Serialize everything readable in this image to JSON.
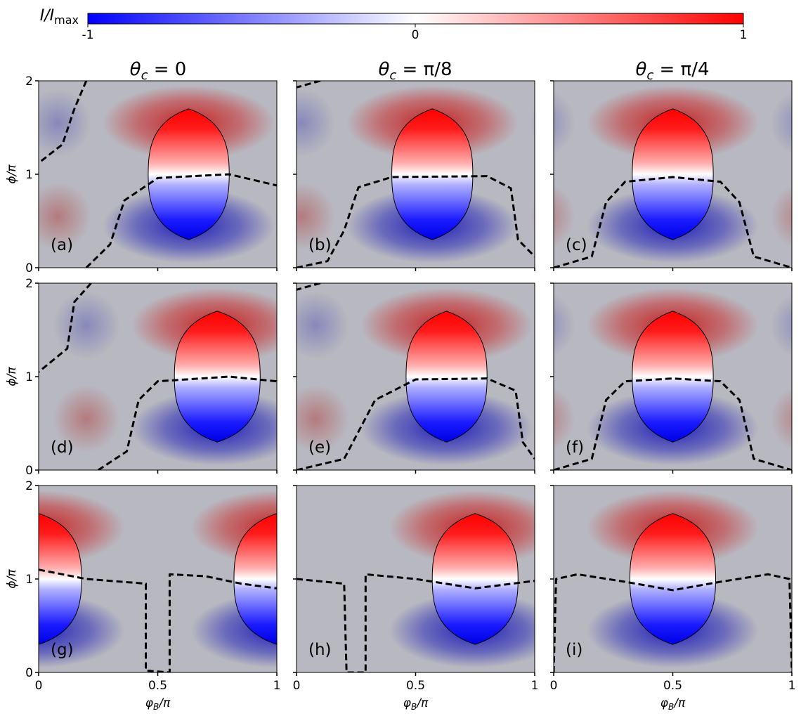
{
  "colorbar": {
    "label": "I/I",
    "label_sub": "max",
    "ticks": [
      "-1",
      "0",
      "1"
    ],
    "colors": {
      "min": "#0000ff",
      "mid": "#ffffff",
      "max": "#ff0000"
    }
  },
  "columns": [
    {
      "theta": "θ",
      "sub": "c",
      "rest": " = 0"
    },
    {
      "theta": "θ",
      "sub": "c",
      "rest": " = π/8"
    },
    {
      "theta": "θ",
      "sub": "c",
      "rest": " = π/4"
    }
  ],
  "y_ticks": [
    "0",
    "1",
    "2"
  ],
  "x_ticks": [
    "0",
    "0.5",
    "1"
  ],
  "ylabel": {
    "main": "ϕ/π"
  },
  "xlabel": {
    "main": "φ",
    "sub": "B",
    "rest": "/π"
  },
  "panel_labels": [
    "(a)",
    "(b)",
    "(c)",
    "(d)",
    "(e)",
    "(f)",
    "(g)",
    "(h)",
    "(i)"
  ],
  "chart_data": {
    "type": "heatmap",
    "title": "",
    "xlabel": "φB/π",
    "ylabel": "ϕ/π",
    "xlim": [
      0,
      1
    ],
    "ylim": [
      0,
      2
    ],
    "colorbar_range": [
      -1,
      1
    ],
    "colormap": "bwr",
    "column_titles": [
      "θc = 0",
      "θc = π/8",
      "θc = π/4"
    ],
    "panels": [
      {
        "label": "(a)",
        "lens": {
          "x_center": 0.63,
          "half_width": 0.17,
          "y_min": 0.3,
          "y_max": 1.7
        },
        "zero_contour": [
          [
            0.2,
            2.0
          ],
          [
            0.15,
            1.7
          ],
          [
            0.1,
            1.32
          ],
          [
            0.0,
            1.12
          ]
        ],
        "zero_contour_2": [
          [
            0.2,
            0.0
          ],
          [
            0.3,
            0.25
          ],
          [
            0.36,
            0.72
          ],
          [
            0.5,
            0.96
          ],
          [
            0.8,
            1.0
          ],
          [
            1.0,
            0.88
          ]
        ]
      },
      {
        "label": "(b)",
        "lens": {
          "x_center": 0.57,
          "half_width": 0.17,
          "y_min": 0.3,
          "y_max": 1.7
        },
        "zero_contour": [
          [
            0.1,
            2.0
          ],
          [
            0.0,
            1.93
          ]
        ],
        "zero_contour_2": [
          [
            0.0,
            0.0
          ],
          [
            0.13,
            0.07
          ],
          [
            0.2,
            0.4
          ],
          [
            0.26,
            0.86
          ],
          [
            0.4,
            0.97
          ],
          [
            0.8,
            0.98
          ],
          [
            0.9,
            0.85
          ],
          [
            0.93,
            0.3
          ],
          [
            1.0,
            0.12
          ]
        ]
      },
      {
        "label": "(c)",
        "lens": {
          "x_center": 0.5,
          "half_width": 0.17,
          "y_min": 0.3,
          "y_max": 1.7
        },
        "zero_contour_2": [
          [
            0.0,
            0.0
          ],
          [
            0.16,
            0.12
          ],
          [
            0.22,
            0.7
          ],
          [
            0.3,
            0.92
          ],
          [
            0.5,
            0.97
          ],
          [
            0.7,
            0.92
          ],
          [
            0.78,
            0.7
          ],
          [
            0.84,
            0.12
          ],
          [
            1.0,
            0.0
          ]
        ]
      },
      {
        "label": "(d)",
        "lens": {
          "x_center": 0.75,
          "half_width": 0.18,
          "y_min": 0.3,
          "y_max": 1.7
        },
        "zero_contour": [
          [
            0.22,
            2.0
          ],
          [
            0.15,
            1.8
          ],
          [
            0.12,
            1.3
          ],
          [
            0.0,
            1.05
          ]
        ],
        "zero_contour_2": [
          [
            0.25,
            0.0
          ],
          [
            0.37,
            0.2
          ],
          [
            0.42,
            0.75
          ],
          [
            0.5,
            0.95
          ],
          [
            0.8,
            1.0
          ],
          [
            1.0,
            0.95
          ]
        ]
      },
      {
        "label": "(e)",
        "lens": {
          "x_center": 0.63,
          "half_width": 0.17,
          "y_min": 0.3,
          "y_max": 1.7
        },
        "zero_contour": [
          [
            0.1,
            2.0
          ],
          [
            0.0,
            1.93
          ]
        ],
        "zero_contour_2": [
          [
            0.0,
            0.0
          ],
          [
            0.2,
            0.12
          ],
          [
            0.33,
            0.75
          ],
          [
            0.5,
            0.97
          ],
          [
            0.8,
            0.98
          ],
          [
            0.92,
            0.85
          ],
          [
            0.95,
            0.3
          ],
          [
            1.0,
            0.12
          ]
        ]
      },
      {
        "label": "(f)",
        "lens": {
          "x_center": 0.5,
          "half_width": 0.17,
          "y_min": 0.3,
          "y_max": 1.7
        },
        "zero_contour_2": [
          [
            0.0,
            0.0
          ],
          [
            0.16,
            0.12
          ],
          [
            0.22,
            0.75
          ],
          [
            0.3,
            0.95
          ],
          [
            0.5,
            0.98
          ],
          [
            0.7,
            0.95
          ],
          [
            0.78,
            0.75
          ],
          [
            0.84,
            0.12
          ],
          [
            1.0,
            0.0
          ]
        ]
      },
      {
        "label": "(g)",
        "lens_left": {
          "x_center": 0.0,
          "half_width": 0.18,
          "y_min": 0.3,
          "y_max": 1.7
        },
        "lens_right": {
          "x_center": 1.0,
          "half_width": 0.18,
          "y_min": 0.3,
          "y_max": 1.7
        },
        "zero_contour": [
          [
            0.0,
            1.1
          ],
          [
            0.2,
            1.0
          ],
          [
            0.45,
            0.95
          ],
          [
            0.45,
            0.02
          ],
          [
            0.55,
            0.0
          ],
          [
            0.55,
            1.05
          ],
          [
            0.7,
            1.03
          ],
          [
            0.85,
            0.95
          ],
          [
            1.0,
            0.9
          ]
        ]
      },
      {
        "label": "(h)",
        "lens": {
          "x_center": 0.75,
          "half_width": 0.18,
          "y_min": 0.3,
          "y_max": 1.7
        },
        "zero_contour": [
          [
            0.0,
            1.0
          ],
          [
            0.2,
            0.95
          ],
          [
            0.21,
            0.0
          ],
          [
            0.29,
            0.0
          ],
          [
            0.29,
            1.05
          ],
          [
            0.5,
            1.0
          ],
          [
            0.75,
            0.9
          ],
          [
            1.0,
            0.98
          ]
        ]
      },
      {
        "label": "(i)",
        "lens": {
          "x_center": 0.5,
          "half_width": 0.18,
          "y_min": 0.3,
          "y_max": 1.7
        },
        "zero_contour": [
          [
            0.0,
            0.0
          ],
          [
            0.01,
            1.0
          ],
          [
            0.1,
            1.05
          ],
          [
            0.3,
            0.97
          ],
          [
            0.5,
            0.88
          ],
          [
            0.7,
            0.97
          ],
          [
            0.9,
            1.05
          ],
          [
            0.99,
            1.0
          ],
          [
            1.0,
            0.0
          ]
        ]
      }
    ]
  }
}
